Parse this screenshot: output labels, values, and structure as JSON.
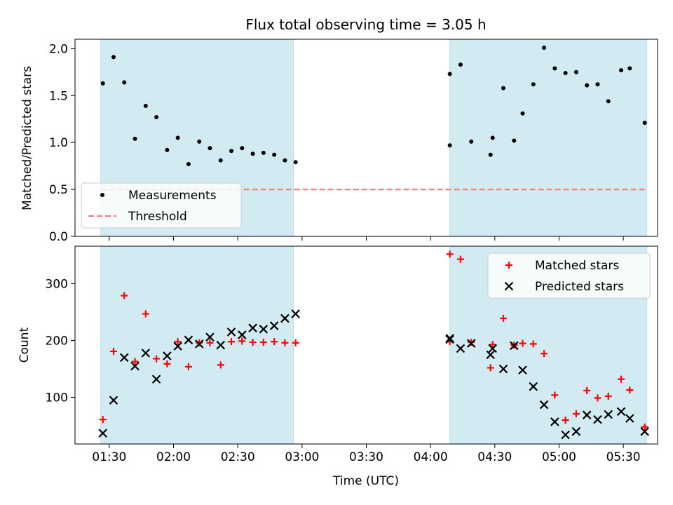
{
  "chart_data": [
    {
      "type": "scatter",
      "title": "Flux total observing time = 3.05 h",
      "xlabel": "",
      "ylabel": "Matched/Predicted stars",
      "xlim": [
        "01:14",
        "05:46"
      ],
      "ylim": [
        0,
        2.1
      ],
      "yticks": [
        0.0,
        0.5,
        1.0,
        1.5,
        2.0
      ],
      "ytick_labels": [
        "0.0",
        "0.5",
        "1.0",
        "1.5",
        "2.0"
      ],
      "shaded_spans": [
        [
          "01:26",
          "02:56"
        ],
        [
          "04:09",
          "05:41"
        ]
      ],
      "shade_color": "#add8e6",
      "threshold": 0.5,
      "legend_location": "lower left",
      "series": [
        {
          "name": "Measurements",
          "marker": "dot",
          "color": "#000000",
          "x": [
            "01:27",
            "01:32",
            "01:37",
            "01:42",
            "01:47",
            "01:52",
            "01:57",
            "02:02",
            "02:07",
            "02:12",
            "02:17",
            "02:22",
            "02:27",
            "02:32",
            "02:37",
            "02:42",
            "02:47",
            "02:52",
            "02:57",
            "04:09",
            "04:09",
            "04:14",
            "04:19",
            "04:28",
            "04:29",
            "04:34",
            "04:39",
            "04:43",
            "04:48",
            "04:53",
            "04:58",
            "05:03",
            "05:08",
            "05:13",
            "05:18",
            "05:23",
            "05:29",
            "05:33",
            "05:40"
          ],
          "y": [
            1.63,
            1.91,
            1.64,
            1.04,
            1.39,
            1.27,
            0.92,
            1.05,
            0.77,
            1.01,
            0.94,
            0.81,
            0.91,
            0.94,
            0.88,
            0.89,
            0.87,
            0.81,
            0.79,
            1.73,
            0.97,
            1.83,
            1.01,
            0.87,
            1.05,
            1.58,
            1.02,
            1.31,
            1.62,
            2.01,
            1.79,
            1.74,
            1.75,
            1.61,
            1.62,
            1.44,
            1.77,
            1.79,
            1.21
          ]
        },
        {
          "name": "Threshold",
          "style": "dashed",
          "color": "#f08080",
          "x": [
            "01:26",
            "05:41"
          ],
          "y": [
            0.5,
            0.5
          ]
        }
      ]
    },
    {
      "type": "scatter",
      "title": "",
      "xlabel": "Time (UTC)",
      "ylabel": "Count",
      "xlim": [
        "01:14",
        "05:46"
      ],
      "ylim": [
        18,
        366
      ],
      "yticks": [
        100,
        200,
        300
      ],
      "ytick_labels": [
        "100",
        "200",
        "300"
      ],
      "xticks": [
        "01:30",
        "02:00",
        "02:30",
        "03:00",
        "03:30",
        "04:00",
        "04:30",
        "05:00",
        "05:30"
      ],
      "xtick_labels": [
        "01:30",
        "02:00",
        "02:30",
        "03:00",
        "03:30",
        "04:00",
        "04:30",
        "05:00",
        "05:30"
      ],
      "shaded_spans": [
        [
          "01:26",
          "02:56"
        ],
        [
          "04:09",
          "05:41"
        ]
      ],
      "shade_color": "#add8e6",
      "legend_location": "upper right",
      "series": [
        {
          "name": "Matched stars",
          "marker": "plus",
          "color": "#ff0000",
          "x": [
            "01:27",
            "01:32",
            "01:37",
            "01:42",
            "01:47",
            "01:52",
            "01:57",
            "02:02",
            "02:07",
            "02:12",
            "02:17",
            "02:22",
            "02:27",
            "02:32",
            "02:37",
            "02:42",
            "02:47",
            "02:52",
            "02:57",
            "04:09",
            "04:09",
            "04:14",
            "04:19",
            "04:28",
            "04:29",
            "04:34",
            "04:39",
            "04:43",
            "04:48",
            "04:53",
            "04:58",
            "05:03",
            "05:08",
            "05:13",
            "05:18",
            "05:23",
            "05:29",
            "05:33",
            "05:40"
          ],
          "y": [
            61,
            181,
            279,
            163,
            247,
            168,
            159,
            198,
            154,
            196,
            196,
            157,
            198,
            199,
            197,
            197,
            198,
            196,
            196,
            352,
            198,
            343,
            197,
            152,
            193,
            239,
            192,
            195,
            194,
            177,
            104,
            60,
            71,
            112,
            99,
            102,
            132,
            113,
            48
          ]
        },
        {
          "name": "Predicted stars",
          "marker": "x",
          "color": "#000000",
          "x": [
            "01:27",
            "01:32",
            "01:37",
            "01:42",
            "01:47",
            "01:52",
            "01:57",
            "02:02",
            "02:07",
            "02:12",
            "02:17",
            "02:22",
            "02:27",
            "02:32",
            "02:37",
            "02:42",
            "02:47",
            "02:52",
            "02:57",
            "04:09",
            "04:09",
            "04:14",
            "04:19",
            "04:28",
            "04:29",
            "04:34",
            "04:39",
            "04:43",
            "04:48",
            "04:53",
            "04:58",
            "05:03",
            "05:08",
            "05:13",
            "05:18",
            "05:23",
            "05:29",
            "05:33",
            "05:40"
          ],
          "y": [
            37,
            95,
            170,
            155,
            178,
            132,
            173,
            190,
            201,
            194,
            206,
            192,
            215,
            210,
            222,
            220,
            226,
            239,
            247,
            202,
            204,
            186,
            195,
            175,
            186,
            150,
            191,
            148,
            119,
            87,
            57,
            34,
            40,
            69,
            61,
            70,
            75,
            63,
            40
          ]
        }
      ]
    }
  ]
}
